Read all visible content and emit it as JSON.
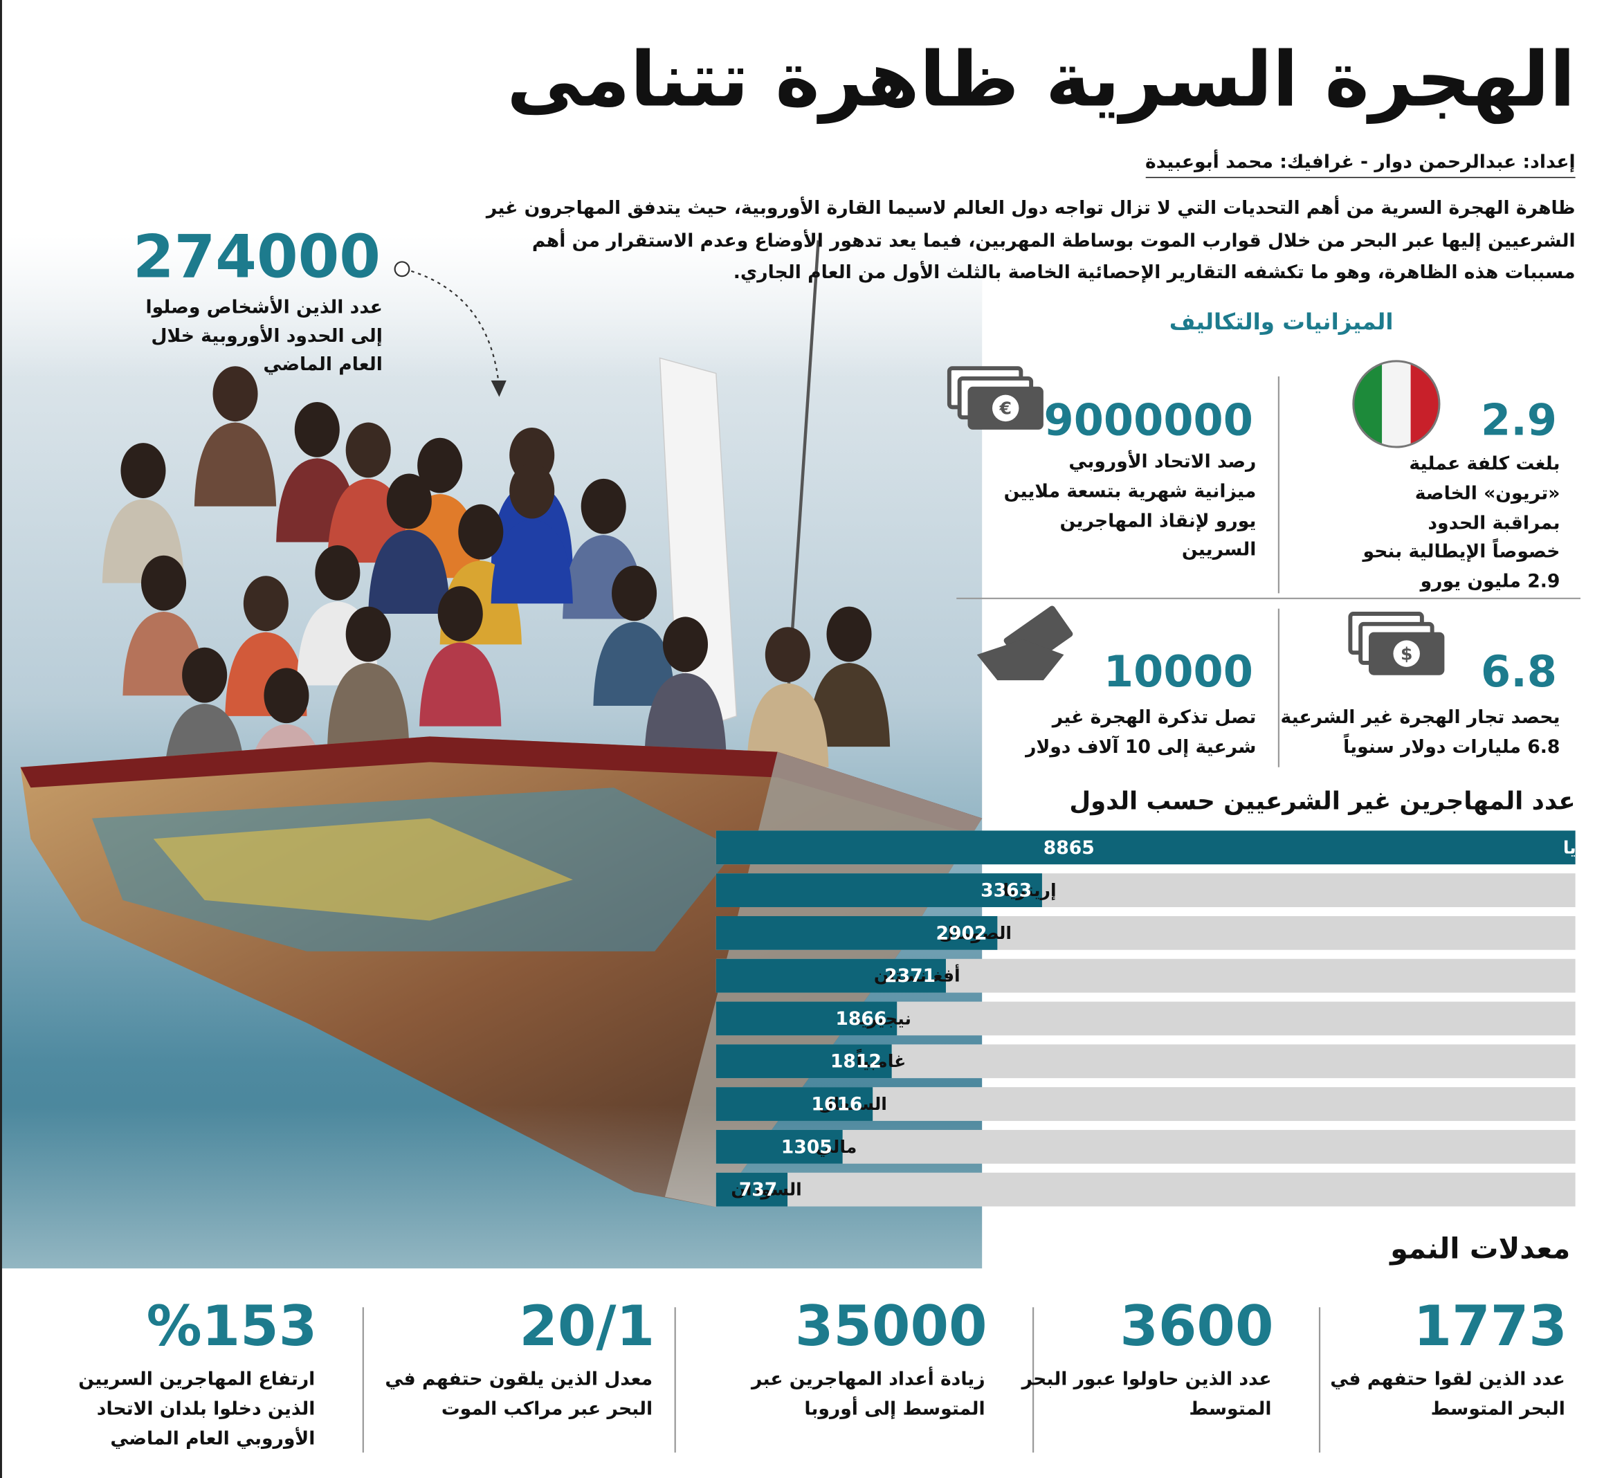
{
  "header": {
    "title": "الهجرة السرية ظاهرة تتنامى",
    "credit": "إعداد: عبدالرحمن دوار - غرافيك: محمد أبوعبيدة",
    "intro": "ظاهرة الهجرة السرية من أهم التحديات التي لا تزال تواجه دول العالم لاسيما القارة الأوروبية، حيث يتدفق المهاجرون غير الشرعيين إليها عبر البحر من خلال قوارب الموت بوساطة المهربين، فيما يعد تدهور الأوضاع وعدم الاستقرار من أهم مسببات هذه الظاهرة، وهو ما تكشفه التقارير الإحصائية الخاصة بالثلث الأول من العام الجاري."
  },
  "highlight": {
    "value": 274000,
    "text": "عدد الذين الأشخاص وصلوا إلى الحدود الأوروبية خلال العام الماضي"
  },
  "budgets": {
    "title": "الميزانيات والتكاليف",
    "items": [
      {
        "value": 2.9,
        "text": "بلغت كلفة عملية «تريون» الخاصة بمراقبة الحدود خصوصاً الإيطالية بنحو 2.9 مليون يورو"
      },
      {
        "value": 9000000,
        "text": "رصد الاتحاد الأوروبي ميزانية شهرية بتسعة ملايين يورو لإنقاذ المهاجرين السريين"
      },
      {
        "value": 6.8,
        "text": "يحصد تجار الهجرة غير الشرعية 6.8 مليارات دولار سنوياً"
      },
      {
        "value": 10000,
        "text": "تصل تذكرة الهجرة غير شرعية إلى 10 آلاف دولار"
      }
    ]
  },
  "chart_data": {
    "type": "bar",
    "title": "عدد المهاجرين غير الشرعيين حسب الدول",
    "categories": [
      "سوريا",
      "إريتريا",
      "الصومال",
      "أفغانستان",
      "نيجيريا",
      "غامبياً",
      "السنغال",
      "مالي",
      "السودان"
    ],
    "values": [
      8865,
      3363,
      2902,
      2371,
      1866,
      1812,
      1616,
      1305,
      737
    ],
    "color": "#0e6478"
  },
  "growth": {
    "title": "معدلات النمو",
    "items": [
      {
        "value": 1773,
        "text": "عدد الذين لقوا حتفهم في البحر المتوسط"
      },
      {
        "value": 3600,
        "text": "عدد الذين حاولوا عبور البحر المتوسط"
      },
      {
        "value": 35000,
        "text": "زيادة أعداد المهاجرين عبر المتوسط إلى أوروبا"
      },
      {
        "value": "20/1",
        "text": "معدل الذين يلقون حتفهم في البحر عبر مراكب الموت"
      },
      {
        "value": "%153",
        "text": "ارتفاع المهاجرين السريين الذين دخلوا بلدان الاتحاد الأوروبي العام الماضي"
      }
    ]
  }
}
